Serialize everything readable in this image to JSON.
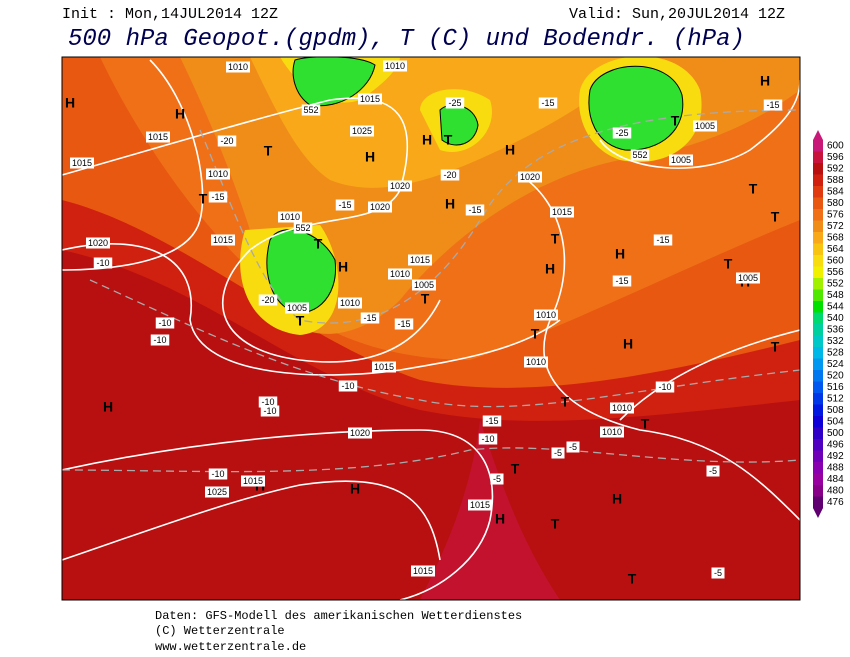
{
  "header": {
    "init": "Init : Mon,14JUL2014 12Z",
    "valid": "Valid: Sun,20JUL2014 12Z",
    "title": "500 hPa Geopot.(gpdm), T (C) und Bodendr. (hPa)"
  },
  "colorbar": {
    "labels": [
      600,
      596,
      592,
      588,
      584,
      580,
      576,
      572,
      568,
      564,
      560,
      556,
      552,
      548,
      544,
      540,
      536,
      532,
      528,
      524,
      520,
      516,
      512,
      508,
      504,
      500,
      496,
      492,
      488,
      484,
      480,
      476
    ],
    "colors": [
      "#c81878",
      "#c8143c",
      "#b81010",
      "#d02010",
      "#e03a10",
      "#e85810",
      "#f07018",
      "#f08c18",
      "#f8a818",
      "#f8c410",
      "#f8dc10",
      "#f0f000",
      "#a0f000",
      "#50e800",
      "#00e000",
      "#00d870",
      "#00d0a0",
      "#00c8c8",
      "#00b8e8",
      "#0098f0",
      "#0078f0",
      "#0058f0",
      "#0038e8",
      "#0018e0",
      "#1000d8",
      "#3000c8",
      "#5000c0",
      "#7000b8",
      "#8800b0",
      "#9800a0",
      "#880088",
      "#600070"
    ]
  },
  "map": {
    "labels": [
      "H",
      "H",
      "T",
      "H",
      "H",
      "T",
      "H",
      "H",
      "T",
      "T",
      "T",
      "T",
      "H",
      "T",
      "H",
      "T",
      "H",
      "T",
      "T",
      "H",
      "T",
      "H",
      "T",
      "H",
      "T",
      "H",
      "T",
      "T",
      "H",
      "H",
      "T",
      "H",
      "H",
      "T",
      "T",
      "1010",
      "1010",
      "1015",
      "1025",
      "1015",
      "1015",
      "1010",
      "1020",
      "1020",
      "1020",
      "1015",
      "1010",
      "1015",
      "1020",
      "1010",
      "1015",
      "1005",
      "1010",
      "1005",
      "1010",
      "1010",
      "1015",
      "1010",
      "1005",
      "1005",
      "1005",
      "1020",
      "1015",
      "1025",
      "1015",
      "1015",
      "1010",
      "-20",
      "-15",
      "-10",
      "-20",
      "-15",
      "-15",
      "-15",
      "-15",
      "-20",
      "-25",
      "-15",
      "-25",
      "-15",
      "-15",
      "-15",
      "-10",
      "-10",
      "-10",
      "-10",
      "-10",
      "-10",
      "-15",
      "-10",
      "-5",
      "-5",
      "-10",
      "-5",
      "-5",
      "-5",
      "552",
      "552",
      "552"
    ]
  },
  "footer": {
    "lines": [
      "Daten: GFS-Modell des amerikanischen Wetterdienstes",
      "(C) Wetterzentrale",
      "www.wetterzentrale.de"
    ]
  }
}
